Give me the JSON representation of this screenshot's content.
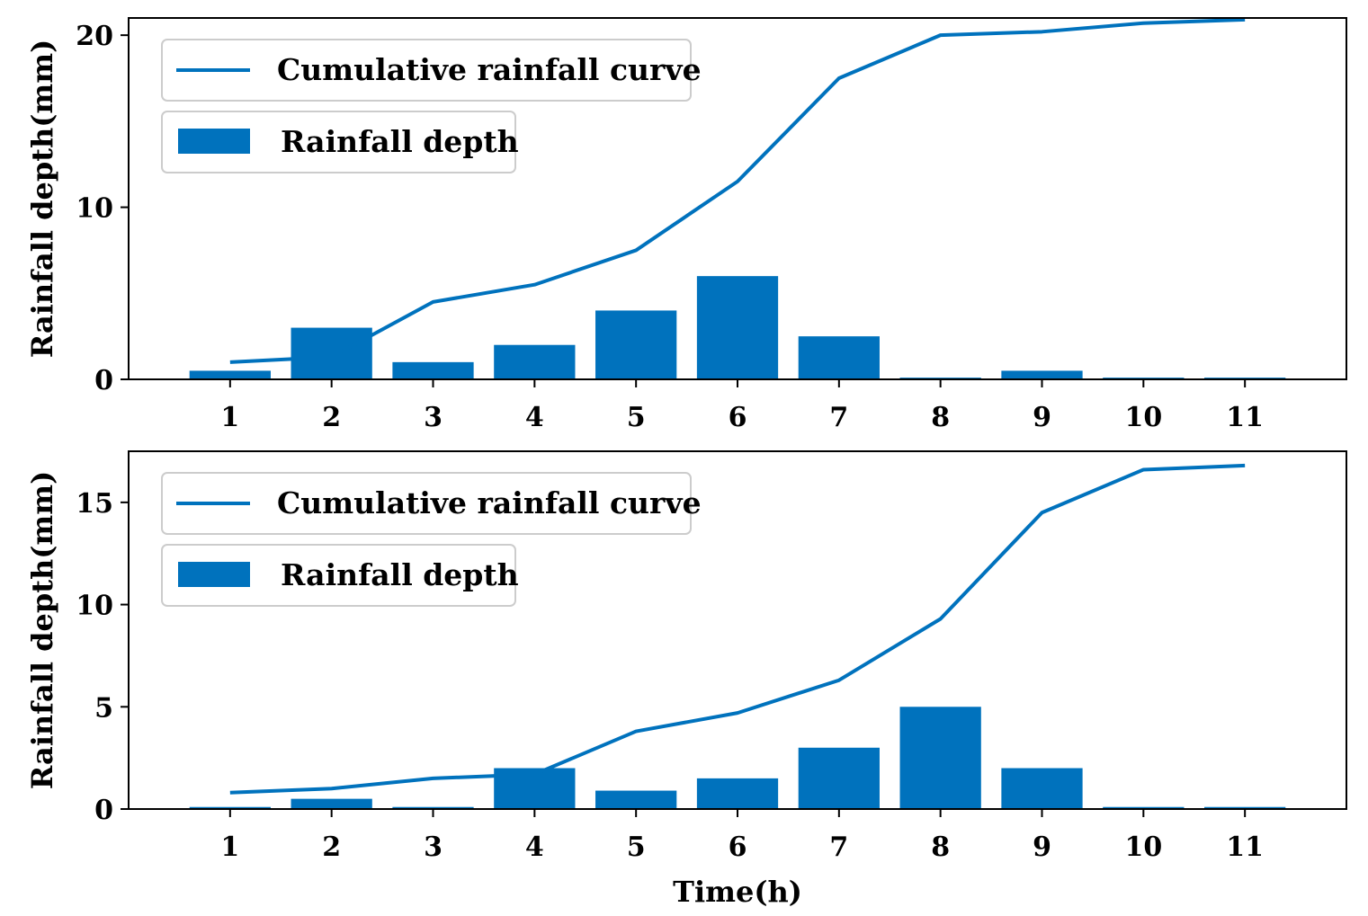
{
  "colors": {
    "series": "#0072BD",
    "axis": "#000000",
    "legend_border": "#cccccc"
  },
  "chart_data": [
    {
      "type": "bar",
      "x": [
        1,
        2,
        3,
        4,
        5,
        6,
        7,
        8,
        9,
        10,
        11
      ],
      "xticks": [
        "1",
        "2",
        "3",
        "4",
        "5",
        "6",
        "7",
        "8",
        "9",
        "10",
        "11"
      ],
      "xlim": [
        0,
        12
      ],
      "ylim": [
        0,
        21
      ],
      "yticks": [
        0,
        10,
        20
      ],
      "ylabel": "Rainfall depth(mm)",
      "xlabel": "",
      "legend_position": "upper-left",
      "series": [
        {
          "name": "Cumulative rainfall curve",
          "kind": "line",
          "values": [
            1.0,
            1.3,
            4.5,
            5.5,
            7.5,
            11.5,
            17.5,
            20.0,
            20.2,
            20.7,
            20.9
          ]
        },
        {
          "name": "Rainfall depth",
          "kind": "bar",
          "values": [
            0.5,
            3.0,
            1.0,
            2.0,
            4.0,
            6.0,
            2.5,
            0.1,
            0.5,
            0.1,
            0.1
          ]
        }
      ]
    },
    {
      "type": "bar",
      "x": [
        1,
        2,
        3,
        4,
        5,
        6,
        7,
        8,
        9,
        10,
        11
      ],
      "xticks": [
        "1",
        "2",
        "3",
        "4",
        "5",
        "6",
        "7",
        "8",
        "9",
        "10",
        "11"
      ],
      "xlim": [
        0,
        12
      ],
      "ylim": [
        0,
        17.5
      ],
      "yticks": [
        0,
        5,
        10,
        15
      ],
      "ylabel": "Rainfall depth(mm)",
      "xlabel": "Time(h)",
      "legend_position": "upper-left",
      "series": [
        {
          "name": "Cumulative rainfall curve",
          "kind": "line",
          "values": [
            0.8,
            1.0,
            1.5,
            1.7,
            3.8,
            4.7,
            6.3,
            9.3,
            14.5,
            16.6,
            16.8
          ]
        },
        {
          "name": "Rainfall depth",
          "kind": "bar",
          "values": [
            0.1,
            0.5,
            0.1,
            2.0,
            0.9,
            1.5,
            3.0,
            5.0,
            2.0,
            0.1,
            0.1
          ]
        }
      ]
    }
  ]
}
